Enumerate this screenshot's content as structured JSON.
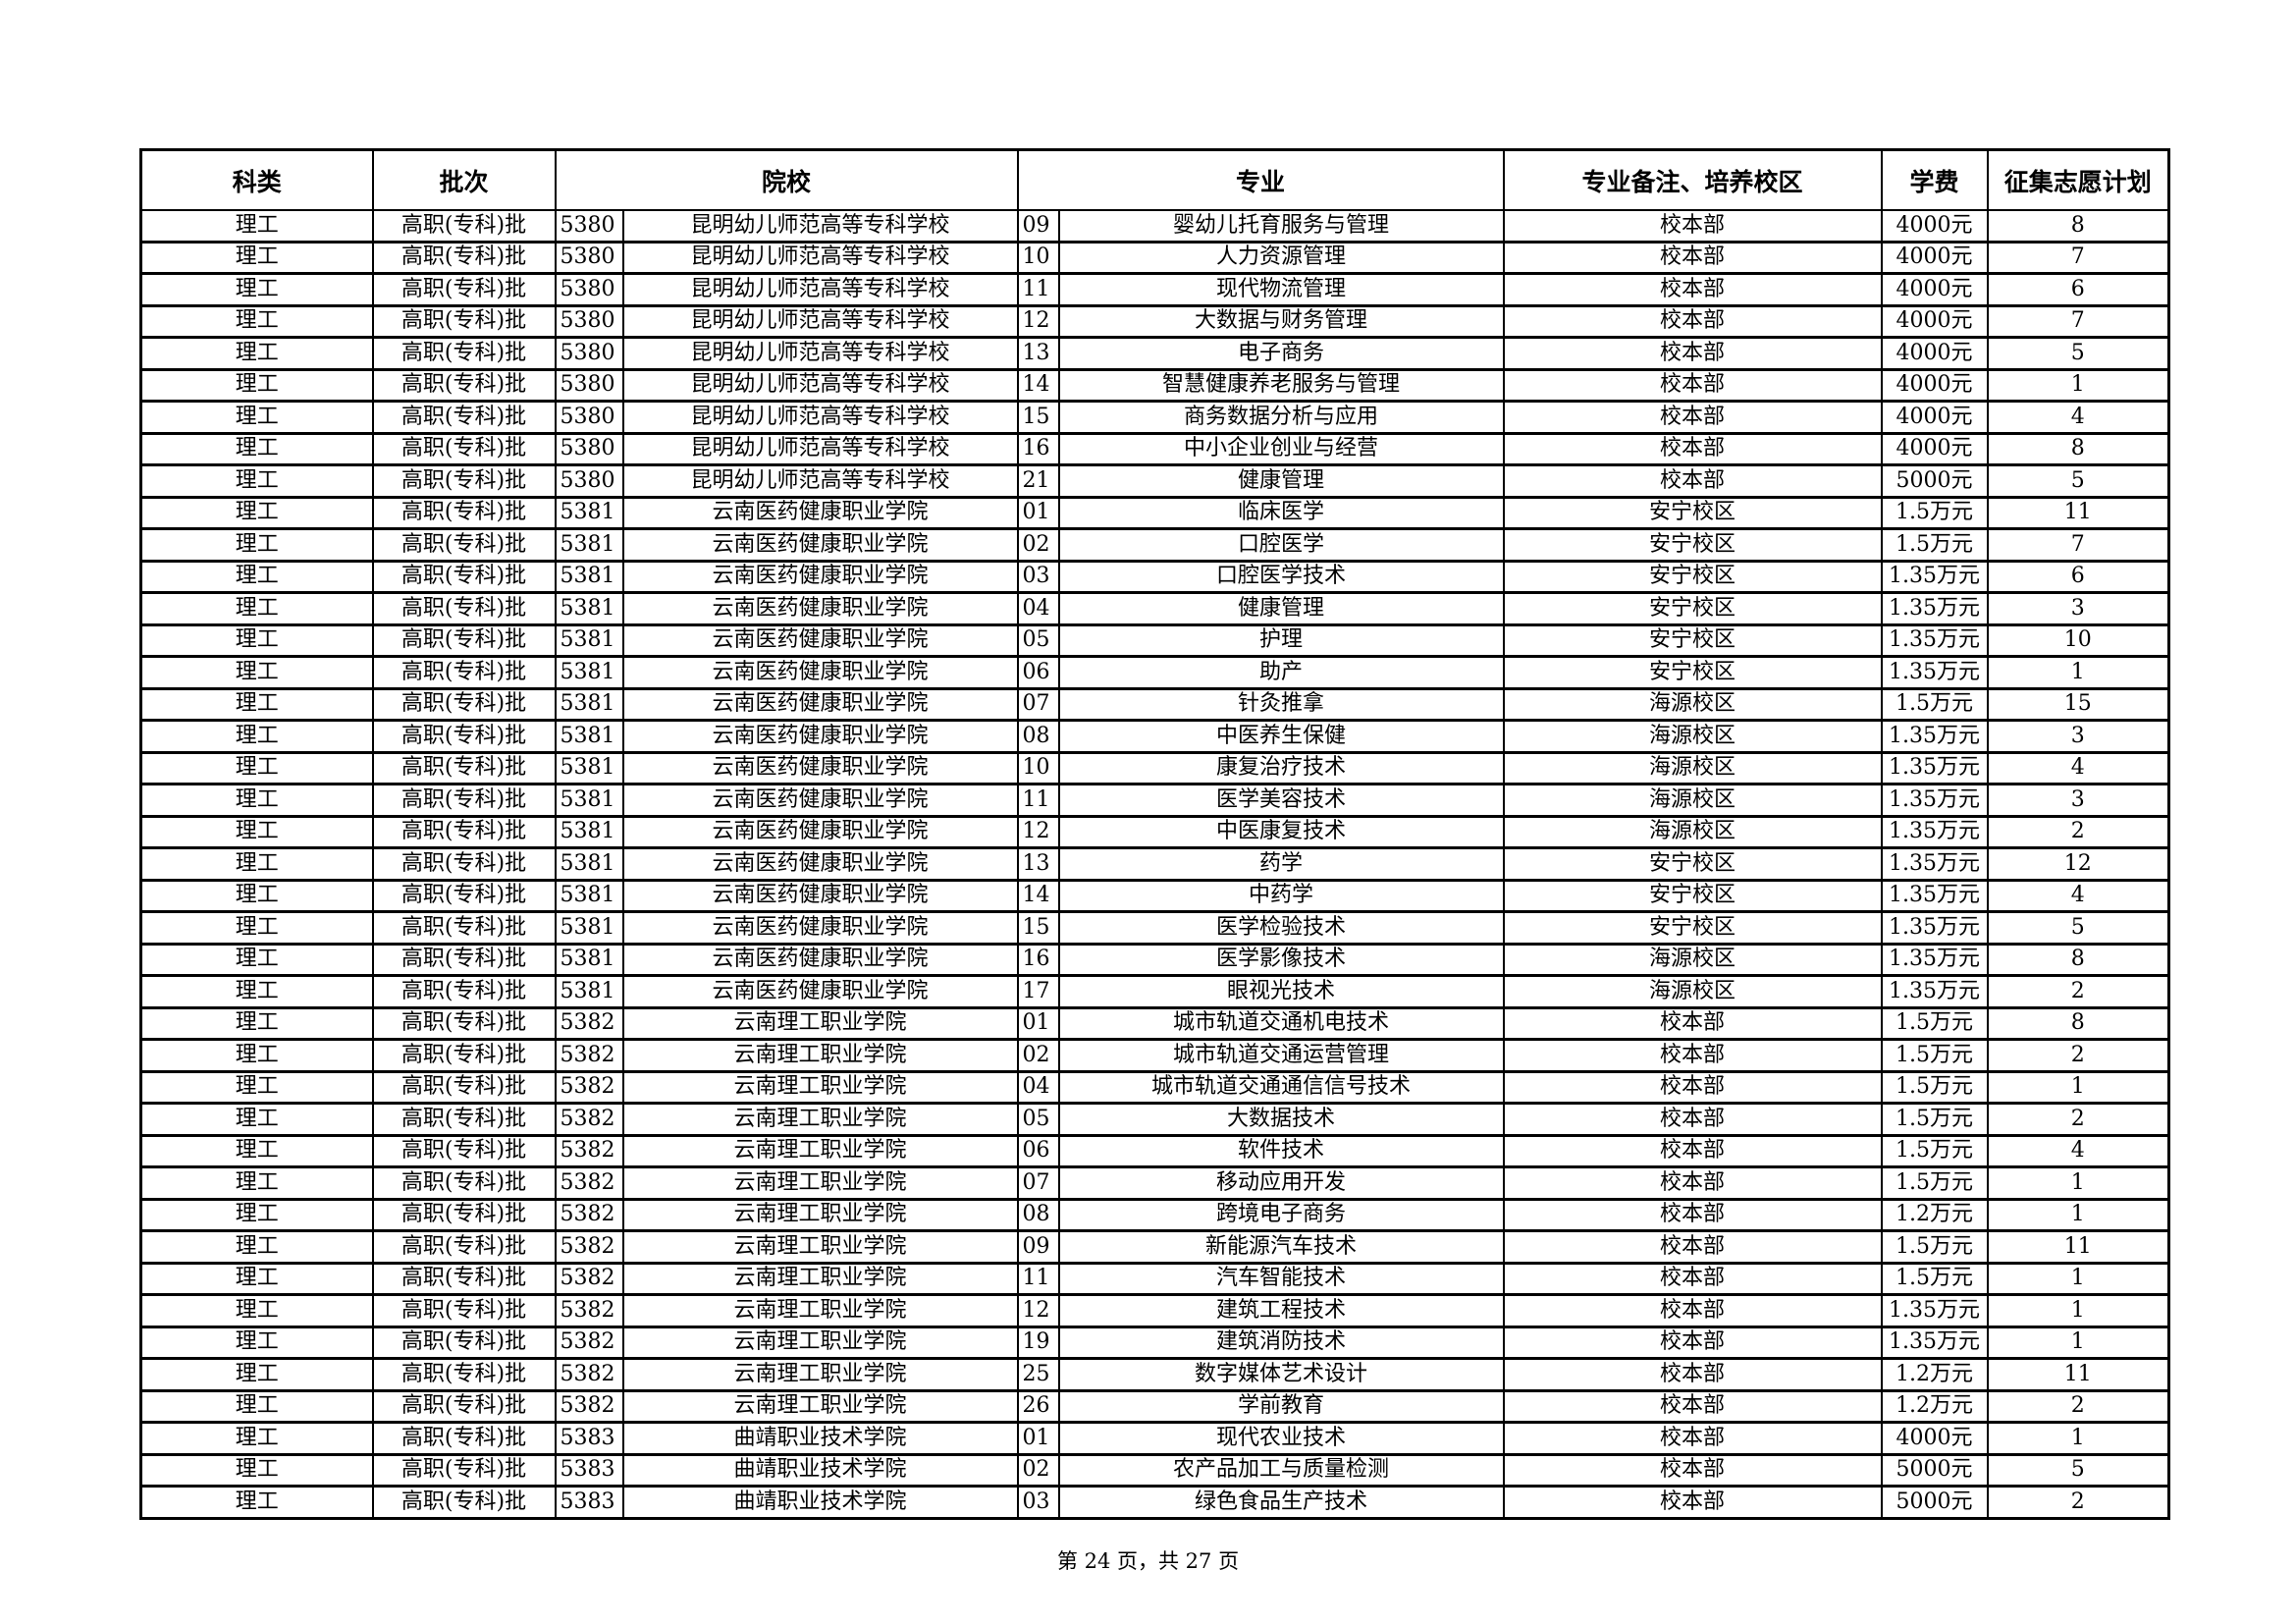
{
  "headers": [
    "科类",
    "批次",
    "院校",
    "专业",
    "专业备注、培养校区",
    "学费",
    "征集志愿计划"
  ],
  "rows": [
    [
      "理工",
      "高职(专科)批",
      "5380",
      "昆明幼儿师范高等专科学校",
      "09",
      "婴幼儿托育服务与管理",
      "校本部",
      "4000元",
      "8"
    ],
    [
      "理工",
      "高职(专科)批",
      "5380",
      "昆明幼儿师范高等专科学校",
      "10",
      "人力资源管理",
      "校本部",
      "4000元",
      "7"
    ],
    [
      "理工",
      "高职(专科)批",
      "5380",
      "昆明幼儿师范高等专科学校",
      "11",
      "现代物流管理",
      "校本部",
      "4000元",
      "6"
    ],
    [
      "理工",
      "高职(专科)批",
      "5380",
      "昆明幼儿师范高等专科学校",
      "12",
      "大数据与财务管理",
      "校本部",
      "4000元",
      "7"
    ],
    [
      "理工",
      "高职(专科)批",
      "5380",
      "昆明幼儿师范高等专科学校",
      "13",
      "电子商务",
      "校本部",
      "4000元",
      "5"
    ],
    [
      "理工",
      "高职(专科)批",
      "5380",
      "昆明幼儿师范高等专科学校",
      "14",
      "智慧健康养老服务与管理",
      "校本部",
      "4000元",
      "1"
    ],
    [
      "理工",
      "高职(专科)批",
      "5380",
      "昆明幼儿师范高等专科学校",
      "15",
      "商务数据分析与应用",
      "校本部",
      "4000元",
      "4"
    ],
    [
      "理工",
      "高职(专科)批",
      "5380",
      "昆明幼儿师范高等专科学校",
      "16",
      "中小企业创业与经营",
      "校本部",
      "4000元",
      "8"
    ],
    [
      "理工",
      "高职(专科)批",
      "5380",
      "昆明幼儿师范高等专科学校",
      "21",
      "健康管理",
      "校本部",
      "5000元",
      "5"
    ],
    [
      "理工",
      "高职(专科)批",
      "5381",
      "云南医药健康职业学院",
      "01",
      "临床医学",
      "安宁校区",
      "1.5万元",
      "11"
    ],
    [
      "理工",
      "高职(专科)批",
      "5381",
      "云南医药健康职业学院",
      "02",
      "口腔医学",
      "安宁校区",
      "1.5万元",
      "7"
    ],
    [
      "理工",
      "高职(专科)批",
      "5381",
      "云南医药健康职业学院",
      "03",
      "口腔医学技术",
      "安宁校区",
      "1.35万元",
      "6"
    ],
    [
      "理工",
      "高职(专科)批",
      "5381",
      "云南医药健康职业学院",
      "04",
      "健康管理",
      "安宁校区",
      "1.35万元",
      "3"
    ],
    [
      "理工",
      "高职(专科)批",
      "5381",
      "云南医药健康职业学院",
      "05",
      "护理",
      "安宁校区",
      "1.35万元",
      "10"
    ],
    [
      "理工",
      "高职(专科)批",
      "5381",
      "云南医药健康职业学院",
      "06",
      "助产",
      "安宁校区",
      "1.35万元",
      "1"
    ],
    [
      "理工",
      "高职(专科)批",
      "5381",
      "云南医药健康职业学院",
      "07",
      "针灸推拿",
      "海源校区",
      "1.5万元",
      "15"
    ],
    [
      "理工",
      "高职(专科)批",
      "5381",
      "云南医药健康职业学院",
      "08",
      "中医养生保健",
      "海源校区",
      "1.35万元",
      "3"
    ],
    [
      "理工",
      "高职(专科)批",
      "5381",
      "云南医药健康职业学院",
      "10",
      "康复治疗技术",
      "海源校区",
      "1.35万元",
      "4"
    ],
    [
      "理工",
      "高职(专科)批",
      "5381",
      "云南医药健康职业学院",
      "11",
      "医学美容技术",
      "海源校区",
      "1.35万元",
      "3"
    ],
    [
      "理工",
      "高职(专科)批",
      "5381",
      "云南医药健康职业学院",
      "12",
      "中医康复技术",
      "海源校区",
      "1.35万元",
      "2"
    ],
    [
      "理工",
      "高职(专科)批",
      "5381",
      "云南医药健康职业学院",
      "13",
      "药学",
      "安宁校区",
      "1.35万元",
      "12"
    ],
    [
      "理工",
      "高职(专科)批",
      "5381",
      "云南医药健康职业学院",
      "14",
      "中药学",
      "安宁校区",
      "1.35万元",
      "4"
    ],
    [
      "理工",
      "高职(专科)批",
      "5381",
      "云南医药健康职业学院",
      "15",
      "医学检验技术",
      "安宁校区",
      "1.35万元",
      "5"
    ],
    [
      "理工",
      "高职(专科)批",
      "5381",
      "云南医药健康职业学院",
      "16",
      "医学影像技术",
      "海源校区",
      "1.35万元",
      "8"
    ],
    [
      "理工",
      "高职(专科)批",
      "5381",
      "云南医药健康职业学院",
      "17",
      "眼视光技术",
      "海源校区",
      "1.35万元",
      "2"
    ],
    [
      "理工",
      "高职(专科)批",
      "5382",
      "云南理工职业学院",
      "01",
      "城市轨道交通机电技术",
      "校本部",
      "1.5万元",
      "8"
    ],
    [
      "理工",
      "高职(专科)批",
      "5382",
      "云南理工职业学院",
      "02",
      "城市轨道交通运营管理",
      "校本部",
      "1.5万元",
      "2"
    ],
    [
      "理工",
      "高职(专科)批",
      "5382",
      "云南理工职业学院",
      "04",
      "城市轨道交通通信信号技术",
      "校本部",
      "1.5万元",
      "1"
    ],
    [
      "理工",
      "高职(专科)批",
      "5382",
      "云南理工职业学院",
      "05",
      "大数据技术",
      "校本部",
      "1.5万元",
      "2"
    ],
    [
      "理工",
      "高职(专科)批",
      "5382",
      "云南理工职业学院",
      "06",
      "软件技术",
      "校本部",
      "1.5万元",
      "4"
    ],
    [
      "理工",
      "高职(专科)批",
      "5382",
      "云南理工职业学院",
      "07",
      "移动应用开发",
      "校本部",
      "1.5万元",
      "1"
    ],
    [
      "理工",
      "高职(专科)批",
      "5382",
      "云南理工职业学院",
      "08",
      "跨境电子商务",
      "校本部",
      "1.2万元",
      "1"
    ],
    [
      "理工",
      "高职(专科)批",
      "5382",
      "云南理工职业学院",
      "09",
      "新能源汽车技术",
      "校本部",
      "1.5万元",
      "11"
    ],
    [
      "理工",
      "高职(专科)批",
      "5382",
      "云南理工职业学院",
      "11",
      "汽车智能技术",
      "校本部",
      "1.5万元",
      "1"
    ],
    [
      "理工",
      "高职(专科)批",
      "5382",
      "云南理工职业学院",
      "12",
      "建筑工程技术",
      "校本部",
      "1.35万元",
      "1"
    ],
    [
      "理工",
      "高职(专科)批",
      "5382",
      "云南理工职业学院",
      "19",
      "建筑消防技术",
      "校本部",
      "1.35万元",
      "1"
    ],
    [
      "理工",
      "高职(专科)批",
      "5382",
      "云南理工职业学院",
      "25",
      "数字媒体艺术设计",
      "校本部",
      "1.2万元",
      "11"
    ],
    [
      "理工",
      "高职(专科)批",
      "5382",
      "云南理工职业学院",
      "26",
      "学前教育",
      "校本部",
      "1.2万元",
      "2"
    ],
    [
      "理工",
      "高职(专科)批",
      "5383",
      "曲靖职业技术学院",
      "01",
      "现代农业技术",
      "校本部",
      "4000元",
      "1"
    ],
    [
      "理工",
      "高职(专科)批",
      "5383",
      "曲靖职业技术学院",
      "02",
      "农产品加工与质量检测",
      "校本部",
      "5000元",
      "5"
    ],
    [
      "理工",
      "高职(专科)批",
      "5383",
      "曲靖职业技术学院",
      "03",
      "绿色食品生产技术",
      "校本部",
      "5000元",
      "2"
    ]
  ],
  "footer": "第 24 页，共 27 页"
}
